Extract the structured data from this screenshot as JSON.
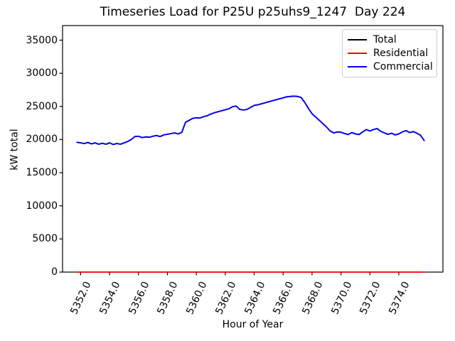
{
  "title": "Timeseries Load for P25U p25uhs9_1247  Day 224",
  "axes": {
    "xlabel": "Hour of Year",
    "ylabel": "kW total",
    "x_ticks": [
      5352,
      5354,
      5356,
      5358,
      5360,
      5362,
      5364,
      5366,
      5368,
      5370,
      5372,
      5374
    ],
    "x_tick_labels": [
      "5352.0",
      "5354.0",
      "5356.0",
      "5358.0",
      "5360.0",
      "5362.0",
      "5364.0",
      "5366.0",
      "5368.0",
      "5370.0",
      "5372.0",
      "5374.0"
    ],
    "y_ticks": [
      0,
      5000,
      10000,
      15000,
      20000,
      25000,
      30000,
      35000
    ],
    "y_tick_labels": [
      "0",
      "5000",
      "10000",
      "15000",
      "20000",
      "25000",
      "30000",
      "35000"
    ]
  },
  "legend": {
    "entries": [
      {
        "label": "Total",
        "color": "#000000"
      },
      {
        "label": "Residential",
        "color": "#ff0000"
      },
      {
        "label": "Commercial",
        "color": "#0000ff"
      }
    ]
  },
  "chart_data": {
    "type": "line",
    "title": "Timeseries Load for P25U p25uhs9_1247  Day 224",
    "xlabel": "Hour of Year",
    "ylabel": "kW total",
    "xlim": [
      5350.75,
      5377.05
    ],
    "ylim": [
      0,
      37200
    ],
    "grid": false,
    "legend_position": "upper right",
    "x": [
      5351.75,
      5352.0,
      5352.25,
      5352.5,
      5352.75,
      5353.0,
      5353.25,
      5353.5,
      5353.75,
      5354.0,
      5354.25,
      5354.5,
      5354.75,
      5355.0,
      5355.25,
      5355.5,
      5355.75,
      5356.0,
      5356.25,
      5356.5,
      5356.75,
      5357.0,
      5357.25,
      5357.5,
      5357.75,
      5358.0,
      5358.25,
      5358.5,
      5358.75,
      5359.0,
      5359.25,
      5359.5,
      5359.75,
      5360.0,
      5360.25,
      5360.5,
      5360.75,
      5361.0,
      5361.25,
      5361.5,
      5361.75,
      5362.0,
      5362.25,
      5362.5,
      5362.75,
      5363.0,
      5363.25,
      5363.5,
      5363.75,
      5364.0,
      5364.25,
      5364.5,
      5364.75,
      5365.0,
      5365.25,
      5365.5,
      5365.75,
      5366.0,
      5366.25,
      5366.5,
      5366.75,
      5367.0,
      5367.25,
      5367.5,
      5367.75,
      5368.0,
      5368.25,
      5368.5,
      5368.75,
      5369.0,
      5369.25,
      5369.5,
      5369.75,
      5370.0,
      5370.25,
      5370.5,
      5370.75,
      5371.0,
      5371.25,
      5371.5,
      5371.75,
      5372.0,
      5372.25,
      5372.5,
      5372.75,
      5373.0,
      5373.25,
      5373.5,
      5373.75,
      5374.0,
      5374.25,
      5374.5,
      5374.75,
      5375.0,
      5375.25,
      5375.5,
      5375.75
    ],
    "series": [
      {
        "name": "Total",
        "color": "#000000",
        "values": [
          19600,
          19500,
          19400,
          19550,
          19350,
          19500,
          19300,
          19450,
          19300,
          19500,
          19250,
          19400,
          19300,
          19500,
          19700,
          20000,
          20450,
          20500,
          20300,
          20400,
          20350,
          20500,
          20600,
          20450,
          20700,
          20800,
          20900,
          21000,
          20850,
          21100,
          22600,
          22900,
          23200,
          23300,
          23250,
          23450,
          23600,
          23850,
          24050,
          24200,
          24350,
          24500,
          24650,
          24950,
          25050,
          24550,
          24450,
          24550,
          24850,
          25150,
          25250,
          25400,
          25550,
          25700,
          25850,
          26000,
          26150,
          26300,
          26450,
          26500,
          26550,
          26500,
          26350,
          25600,
          24700,
          23900,
          23400,
          22900,
          22400,
          21900,
          21300,
          21000,
          21150,
          21100,
          20900,
          20750,
          21050,
          20850,
          20750,
          21150,
          21500,
          21300,
          21500,
          21650,
          21250,
          21000,
          20800,
          20950,
          20700,
          20850,
          21150,
          21350,
          21050,
          21200,
          20950,
          20650,
          19850
        ]
      },
      {
        "name": "Residential",
        "color": "#ff0000",
        "values": [
          0,
          0,
          0,
          0,
          0,
          0,
          0,
          0,
          0,
          0,
          0,
          0,
          0,
          0,
          0,
          0,
          0,
          0,
          0,
          0,
          0,
          0,
          0,
          0,
          0,
          0,
          0,
          0,
          0,
          0,
          0,
          0,
          0,
          0,
          0,
          0,
          0,
          0,
          0,
          0,
          0,
          0,
          0,
          0,
          0,
          0,
          0,
          0,
          0,
          0,
          0,
          0,
          0,
          0,
          0,
          0,
          0,
          0,
          0,
          0,
          0,
          0,
          0,
          0,
          0,
          0,
          0,
          0,
          0,
          0,
          0,
          0,
          0,
          0,
          0,
          0,
          0,
          0,
          0,
          0,
          0,
          0,
          0,
          0,
          0,
          0,
          0,
          0,
          0,
          0,
          0,
          0,
          0,
          0,
          0,
          0,
          0
        ]
      },
      {
        "name": "Commercial",
        "color": "#0000ff",
        "values": [
          19600,
          19500,
          19400,
          19550,
          19350,
          19500,
          19300,
          19450,
          19300,
          19500,
          19250,
          19400,
          19300,
          19500,
          19700,
          20000,
          20450,
          20500,
          20300,
          20400,
          20350,
          20500,
          20600,
          20450,
          20700,
          20800,
          20900,
          21000,
          20850,
          21100,
          22600,
          22900,
          23200,
          23300,
          23250,
          23450,
          23600,
          23850,
          24050,
          24200,
          24350,
          24500,
          24650,
          24950,
          25050,
          24550,
          24450,
          24550,
          24850,
          25150,
          25250,
          25400,
          25550,
          25700,
          25850,
          26000,
          26150,
          26300,
          26450,
          26500,
          26550,
          26500,
          26350,
          25600,
          24700,
          23900,
          23400,
          22900,
          22400,
          21900,
          21300,
          21000,
          21150,
          21100,
          20900,
          20750,
          21050,
          20850,
          20750,
          21150,
          21500,
          21300,
          21500,
          21650,
          21250,
          21000,
          20800,
          20950,
          20700,
          20850,
          21150,
          21350,
          21050,
          21200,
          20950,
          20650,
          19850
        ]
      }
    ]
  }
}
